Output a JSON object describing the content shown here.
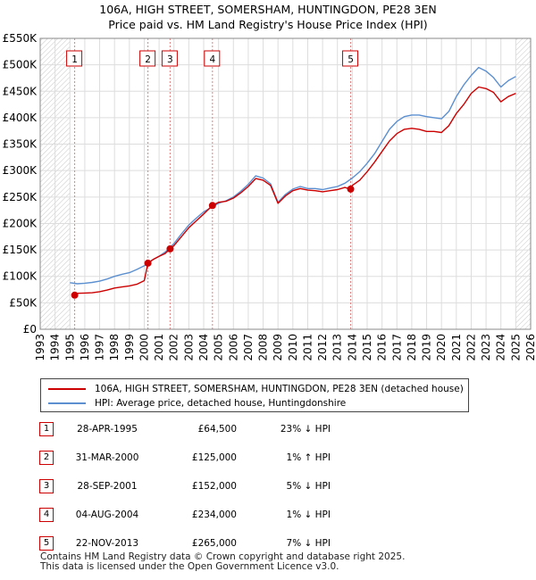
{
  "title_line1": "106A, HIGH STREET, SOMERSHAM, HUNTINGDON, PE28 3EN",
  "title_line2": "Price paid vs. HM Land Registry's House Price Index (HPI)",
  "chart_data": {
    "type": "line",
    "xlim": [
      1993.0,
      2026.0
    ],
    "ylim": [
      0,
      550000
    ],
    "x_ticks": [
      1993,
      1994,
      1995,
      1996,
      1997,
      1998,
      1999,
      2000,
      2001,
      2002,
      2003,
      2004,
      2005,
      2006,
      2007,
      2008,
      2009,
      2010,
      2011,
      2012,
      2013,
      2014,
      2015,
      2016,
      2017,
      2018,
      2019,
      2020,
      2021,
      2022,
      2023,
      2024,
      2025,
      2026
    ],
    "y_ticks": [
      {
        "value": 0,
        "label": "£0"
      },
      {
        "value": 50000,
        "label": "£50K"
      },
      {
        "value": 100000,
        "label": "£100K"
      },
      {
        "value": 150000,
        "label": "£150K"
      },
      {
        "value": 200000,
        "label": "£200K"
      },
      {
        "value": 250000,
        "label": "£250K"
      },
      {
        "value": 300000,
        "label": "£300K"
      },
      {
        "value": 350000,
        "label": "£350K"
      },
      {
        "value": 400000,
        "label": "£400K"
      },
      {
        "value": 450000,
        "label": "£450K"
      },
      {
        "value": 500000,
        "label": "£500K"
      },
      {
        "value": 550000,
        "label": "£550K"
      }
    ],
    "hatched_regions": [
      [
        1993.0,
        1995.0
      ],
      [
        2025.0,
        2026.0
      ]
    ],
    "series": [
      {
        "name": "106A, HIGH STREET, SOMERSHAM, HUNTINGDON, PE28 3EN (detached house)",
        "color": "#cc0000",
        "points": [
          [
            1995.32,
            64500
          ],
          [
            1995.5,
            68000
          ],
          [
            1996,
            68500
          ],
          [
            1996.5,
            69000
          ],
          [
            1997,
            71000
          ],
          [
            1997.5,
            74000
          ],
          [
            1998,
            78000
          ],
          [
            1998.5,
            80000
          ],
          [
            1999,
            82000
          ],
          [
            1999.5,
            85000
          ],
          [
            2000.0,
            92000
          ],
          [
            2000.25,
            125000
          ],
          [
            2000.6,
            132000
          ],
          [
            2001,
            138000
          ],
          [
            2001.4,
            143000
          ],
          [
            2001.74,
            152000
          ],
          [
            2002,
            158000
          ],
          [
            2002.5,
            175000
          ],
          [
            2003,
            192000
          ],
          [
            2003.5,
            205000
          ],
          [
            2004,
            218000
          ],
          [
            2004.59,
            234000
          ],
          [
            2005,
            240000
          ],
          [
            2005.5,
            242000
          ],
          [
            2006,
            248000
          ],
          [
            2006.5,
            258000
          ],
          [
            2007,
            270000
          ],
          [
            2007.5,
            285000
          ],
          [
            2008,
            282000
          ],
          [
            2008.5,
            272000
          ],
          [
            2009,
            238000
          ],
          [
            2009.5,
            252000
          ],
          [
            2010,
            262000
          ],
          [
            2010.5,
            266000
          ],
          [
            2011,
            263000
          ],
          [
            2011.5,
            262000
          ],
          [
            2012,
            260000
          ],
          [
            2012.5,
            262000
          ],
          [
            2013,
            264000
          ],
          [
            2013.5,
            268000
          ],
          [
            2013.89,
            265000
          ],
          [
            2014,
            272000
          ],
          [
            2014.5,
            282000
          ],
          [
            2015,
            298000
          ],
          [
            2015.5,
            316000
          ],
          [
            2016,
            336000
          ],
          [
            2016.5,
            356000
          ],
          [
            2017,
            370000
          ],
          [
            2017.5,
            378000
          ],
          [
            2018,
            380000
          ],
          [
            2018.5,
            378000
          ],
          [
            2019,
            374000
          ],
          [
            2019.5,
            374000
          ],
          [
            2020,
            372000
          ],
          [
            2020.5,
            385000
          ],
          [
            2021,
            408000
          ],
          [
            2021.5,
            425000
          ],
          [
            2022,
            446000
          ],
          [
            2022.5,
            458000
          ],
          [
            2023,
            455000
          ],
          [
            2023.5,
            448000
          ],
          [
            2024,
            430000
          ],
          [
            2024.5,
            440000
          ],
          [
            2025,
            446000
          ]
        ]
      },
      {
        "name": "HPI: Average price, detached house, Huntingdonshire",
        "color": "#5b8fd0",
        "points": [
          [
            1995.0,
            88000
          ],
          [
            1995.5,
            86000
          ],
          [
            1996,
            87000
          ],
          [
            1996.5,
            88500
          ],
          [
            1997,
            91000
          ],
          [
            1997.5,
            95000
          ],
          [
            1998,
            100000
          ],
          [
            1998.5,
            104000
          ],
          [
            1999,
            107000
          ],
          [
            1999.5,
            113000
          ],
          [
            2000,
            120000
          ],
          [
            2000.5,
            130000
          ],
          [
            2001,
            138000
          ],
          [
            2001.5,
            148000
          ],
          [
            2002,
            162000
          ],
          [
            2002.5,
            180000
          ],
          [
            2003,
            197000
          ],
          [
            2003.5,
            210000
          ],
          [
            2004,
            222000
          ],
          [
            2004.5,
            230000
          ],
          [
            2005,
            238000
          ],
          [
            2005.5,
            243000
          ],
          [
            2006,
            250000
          ],
          [
            2006.5,
            261000
          ],
          [
            2007,
            274000
          ],
          [
            2007.5,
            290000
          ],
          [
            2008,
            286000
          ],
          [
            2008.5,
            275000
          ],
          [
            2009,
            240000
          ],
          [
            2009.5,
            255000
          ],
          [
            2010,
            265000
          ],
          [
            2010.5,
            270000
          ],
          [
            2011,
            266000
          ],
          [
            2011.5,
            266000
          ],
          [
            2012,
            264000
          ],
          [
            2012.5,
            267000
          ],
          [
            2013,
            270000
          ],
          [
            2013.5,
            276000
          ],
          [
            2014,
            286000
          ],
          [
            2014.5,
            298000
          ],
          [
            2015,
            314000
          ],
          [
            2015.5,
            332000
          ],
          [
            2016,
            355000
          ],
          [
            2016.5,
            378000
          ],
          [
            2017,
            393000
          ],
          [
            2017.5,
            402000
          ],
          [
            2018,
            405000
          ],
          [
            2018.5,
            405000
          ],
          [
            2019,
            402000
          ],
          [
            2019.5,
            400000
          ],
          [
            2020,
            398000
          ],
          [
            2020.5,
            412000
          ],
          [
            2021,
            440000
          ],
          [
            2021.5,
            462000
          ],
          [
            2022,
            480000
          ],
          [
            2022.5,
            495000
          ],
          [
            2023,
            488000
          ],
          [
            2023.5,
            476000
          ],
          [
            2024,
            458000
          ],
          [
            2024.5,
            470000
          ],
          [
            2025,
            478000
          ]
        ]
      }
    ],
    "sales": [
      {
        "label": "1",
        "x": 1995.32,
        "price": 64500
      },
      {
        "label": "2",
        "x": 2000.25,
        "price": 125000
      },
      {
        "label": "3",
        "x": 2001.74,
        "price": 152000
      },
      {
        "label": "4",
        "x": 2004.59,
        "price": 234000
      },
      {
        "label": "5",
        "x": 2013.89,
        "price": 265000
      }
    ]
  },
  "legend": {
    "line1": "106A, HIGH STREET, SOMERSHAM, HUNTINGDON, PE28 3EN (detached house)",
    "line2": "HPI: Average price, detached house, Huntingdonshire"
  },
  "sales_table": [
    {
      "num": "1",
      "date": "28-APR-1995",
      "price": "£64,500",
      "hpi": "23% ↓ HPI"
    },
    {
      "num": "2",
      "date": "31-MAR-2000",
      "price": "£125,000",
      "hpi": "1% ↑ HPI"
    },
    {
      "num": "3",
      "date": "28-SEP-2001",
      "price": "£152,000",
      "hpi": "5% ↓ HPI"
    },
    {
      "num": "4",
      "date": "04-AUG-2004",
      "price": "£234,000",
      "hpi": "1% ↓ HPI"
    },
    {
      "num": "5",
      "date": "22-NOV-2013",
      "price": "£265,000",
      "hpi": "7% ↓ HPI"
    }
  ],
  "footer_line1": "Contains HM Land Registry data © Crown copyright and database right 2025.",
  "footer_line2": "This data is licensed under the Open Government Licence v3.0."
}
